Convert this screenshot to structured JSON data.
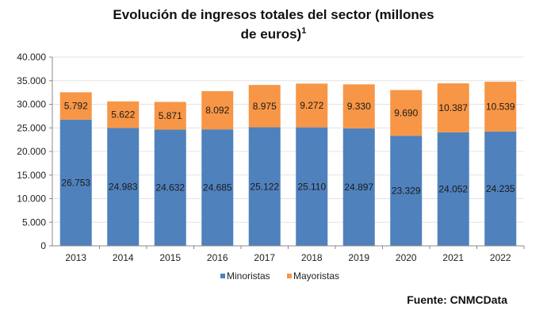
{
  "chart_data": {
    "type": "bar",
    "stacked": true,
    "title_line1": "Evolución de ingresos totales del sector (millones",
    "title_line2": "de euros)",
    "title_sup": "1",
    "categories": [
      "2013",
      "2014",
      "2015",
      "2016",
      "2017",
      "2018",
      "2019",
      "2020",
      "2021",
      "2022"
    ],
    "series": [
      {
        "name": "Minoristas",
        "color": "#4f81bd",
        "values": [
          26753,
          24983,
          24632,
          24685,
          25122,
          25110,
          24897,
          23329,
          24052,
          24235
        ],
        "labels": [
          "26.753",
          "24.983",
          "24.632",
          "24.685",
          "25.122",
          "25.110",
          "24.897",
          "23.329",
          "24.052",
          "24.235"
        ]
      },
      {
        "name": "Mayoristas",
        "color": "#f79646",
        "values": [
          5792,
          5622,
          5871,
          8092,
          8975,
          9272,
          9330,
          9690,
          10387,
          10539
        ],
        "labels": [
          "5.792",
          "5.622",
          "5.871",
          "8.092",
          "8.975",
          "9.272",
          "9.330",
          "9.690",
          "10.387",
          "10.539"
        ]
      }
    ],
    "yticks": [
      0,
      5000,
      10000,
      15000,
      20000,
      25000,
      30000,
      35000,
      40000
    ],
    "ytick_labels": [
      "0",
      "5.000",
      "10.000",
      "15.000",
      "20.000",
      "25.000",
      "30.000",
      "35.000",
      "40.000"
    ],
    "ylim": [
      0,
      40000
    ],
    "grid": true,
    "legend_position": "bottom"
  },
  "source": "Fuente: CNMCData"
}
